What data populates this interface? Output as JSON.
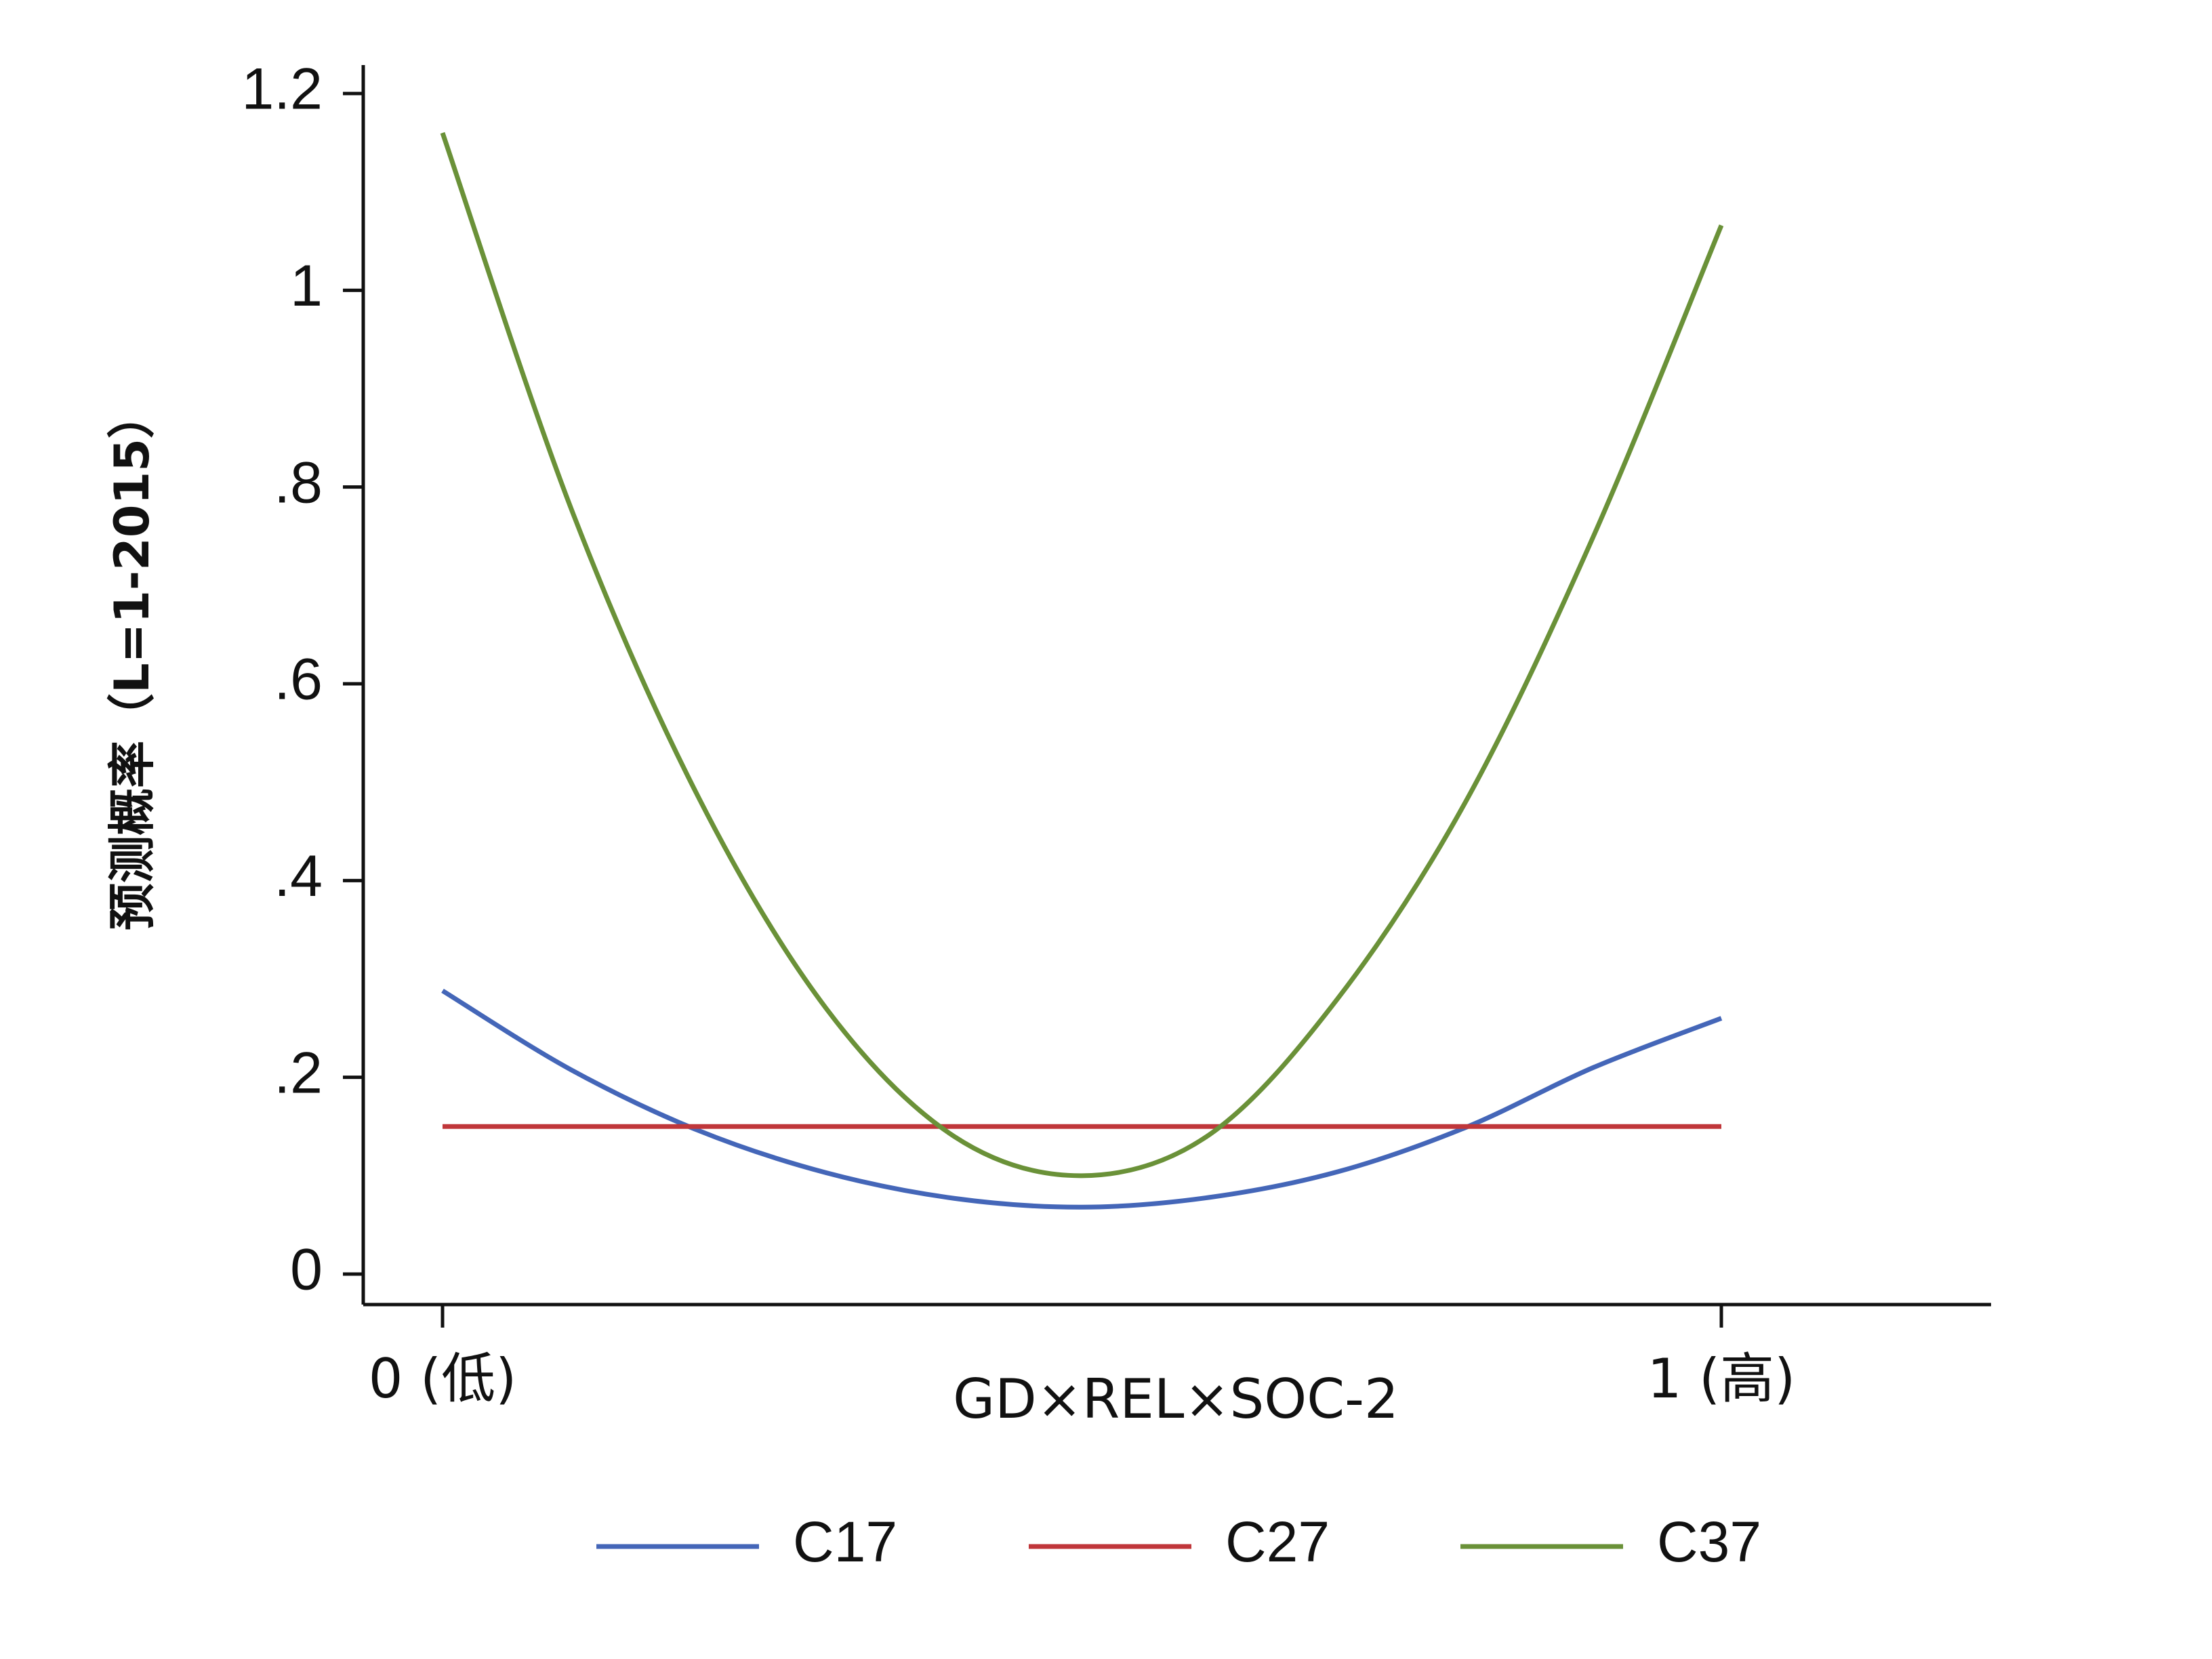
{
  "chart_data": {
    "type": "line",
    "title": "",
    "xlabel": "GD×REL×SOC-2",
    "ylabel": "预测概率（L=1-2015）",
    "xlim": [
      0,
      1
    ],
    "ylim": [
      0,
      1.2
    ],
    "x_ticks": [
      {
        "value": 0,
        "label": "0 (低)"
      },
      {
        "value": 1,
        "label": "1 (高)"
      }
    ],
    "y_ticks": [
      {
        "value": 0,
        "label": "0"
      },
      {
        "value": 0.2,
        "label": ".2"
      },
      {
        "value": 0.4,
        "label": ".4"
      },
      {
        "value": 0.6,
        "label": ".6"
      },
      {
        "value": 0.8,
        "label": ".8"
      },
      {
        "value": 1.0,
        "label": "1"
      },
      {
        "value": 1.2,
        "label": "1.2"
      }
    ],
    "grid": false,
    "legend_position": "bottom",
    "series": [
      {
        "name": "C17",
        "color": "#4466b8",
        "x": [
          0,
          0.1,
          0.2,
          0.3,
          0.4,
          0.5,
          0.6,
          0.7,
          0.8,
          0.9,
          1
        ],
        "values": [
          0.288,
          0.208,
          0.146,
          0.103,
          0.077,
          0.068,
          0.078,
          0.104,
          0.149,
          0.21,
          0.26
        ]
      },
      {
        "name": "C27",
        "color": "#c0363a",
        "x": [
          0,
          0.1,
          0.2,
          0.3,
          0.4,
          0.5,
          0.6,
          0.7,
          0.8,
          0.9,
          1
        ],
        "values": [
          0.15,
          0.15,
          0.15,
          0.15,
          0.15,
          0.15,
          0.15,
          0.15,
          0.15,
          0.15,
          0.15
        ]
      },
      {
        "name": "C37",
        "color": "#6a9138",
        "x": [
          0,
          0.1,
          0.2,
          0.3,
          0.4,
          0.5,
          0.6,
          0.7,
          0.8,
          0.9,
          1
        ],
        "values": [
          1.16,
          0.78,
          0.485,
          0.27,
          0.14,
          0.1,
          0.142,
          0.28,
          0.48,
          0.75,
          1.066
        ]
      }
    ]
  }
}
